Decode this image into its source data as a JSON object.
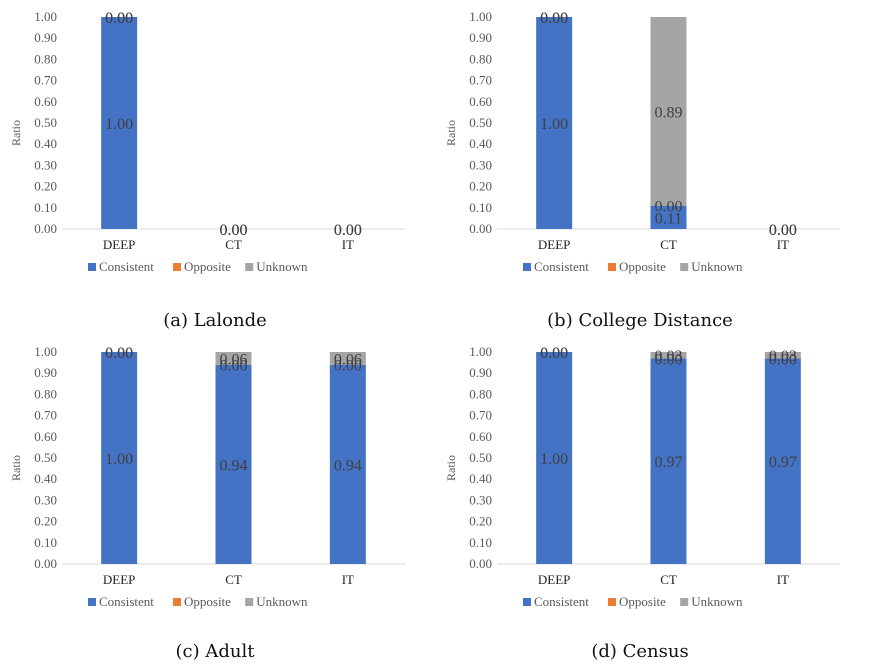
{
  "legend": [
    {
      "name": "Consistent",
      "color": "#4472C4"
    },
    {
      "name": "Opposite",
      "color": "#ED7D31"
    },
    {
      "name": "Unknown",
      "color": "#A5A5A5"
    }
  ],
  "chart_data": [
    {
      "type": "bar",
      "stacked": true,
      "caption": "(a) Lalonde",
      "ylabel": "Ratio",
      "ylim": [
        0,
        1
      ],
      "yticks": [
        "0.00",
        "0.10",
        "0.20",
        "0.30",
        "0.40",
        "0.50",
        "0.60",
        "0.70",
        "0.80",
        "0.90",
        "1.00"
      ],
      "categories": [
        "DEEP",
        "CT",
        "IT"
      ],
      "series": [
        {
          "name": "Consistent",
          "values": [
            1.0,
            0.0,
            0.0
          ],
          "labels": [
            "1.00",
            "0.00",
            "0.00"
          ]
        },
        {
          "name": "Opposite",
          "values": [
            0.0,
            0.0,
            0.0
          ],
          "labels": [
            "0.00",
            "0.00",
            "0.00"
          ]
        },
        {
          "name": "Unknown",
          "values": [
            0.0,
            0.0,
            0.0
          ],
          "labels": [
            "0.00",
            "",
            ""
          ]
        }
      ]
    },
    {
      "type": "bar",
      "stacked": true,
      "caption": "(b) College Distance",
      "ylabel": "Ratio",
      "ylim": [
        0,
        1
      ],
      "yticks": [
        "0.00",
        "0.10",
        "0.20",
        "0.30",
        "0.40",
        "0.50",
        "0.60",
        "0.70",
        "0.80",
        "0.90",
        "1.00"
      ],
      "categories": [
        "DEEP",
        "CT",
        "IT"
      ],
      "series": [
        {
          "name": "Consistent",
          "values": [
            1.0,
            0.11,
            0.0
          ],
          "labels": [
            "1.00",
            "0.11",
            "0.00"
          ]
        },
        {
          "name": "Opposite",
          "values": [
            0.0,
            0.0,
            0.0
          ],
          "labels": [
            "0.00",
            "0.00",
            "0.00"
          ]
        },
        {
          "name": "Unknown",
          "values": [
            0.0,
            0.89,
            0.0
          ],
          "labels": [
            "0.00",
            "0.89",
            ""
          ]
        }
      ]
    },
    {
      "type": "bar",
      "stacked": true,
      "caption": "(c) Adult",
      "ylabel": "Ratio",
      "ylim": [
        0,
        1
      ],
      "yticks": [
        "0.00",
        "0.10",
        "0.20",
        "0.30",
        "0.40",
        "0.50",
        "0.60",
        "0.70",
        "0.80",
        "0.90",
        "1.00"
      ],
      "categories": [
        "DEEP",
        "CT",
        "IT"
      ],
      "series": [
        {
          "name": "Consistent",
          "values": [
            1.0,
            0.94,
            0.94
          ],
          "labels": [
            "1.00",
            "0.94",
            "0.94"
          ]
        },
        {
          "name": "Opposite",
          "values": [
            0.0,
            0.0,
            0.0
          ],
          "labels": [
            "0.00",
            "0.00",
            "0.00"
          ]
        },
        {
          "name": "Unknown",
          "values": [
            0.0,
            0.06,
            0.06
          ],
          "labels": [
            "0.00",
            "0.06",
            "0.06"
          ]
        }
      ]
    },
    {
      "type": "bar",
      "stacked": true,
      "caption": "(d) Census",
      "ylabel": "Ratio",
      "ylim": [
        0,
        1
      ],
      "yticks": [
        "0.00",
        "0.10",
        "0.20",
        "0.30",
        "0.40",
        "0.50",
        "0.60",
        "0.70",
        "0.80",
        "0.90",
        "1.00"
      ],
      "categories": [
        "DEEP",
        "CT",
        "IT"
      ],
      "series": [
        {
          "name": "Consistent",
          "values": [
            1.0,
            0.97,
            0.97
          ],
          "labels": [
            "1.00",
            "0.97",
            "0.97"
          ]
        },
        {
          "name": "Opposite",
          "values": [
            0.0,
            0.0,
            0.0
          ],
          "labels": [
            "0.00",
            "0.00",
            "0.00"
          ]
        },
        {
          "name": "Unknown",
          "values": [
            0.0,
            0.03,
            0.03
          ],
          "labels": [
            "0.00",
            "0.03",
            "0.03"
          ]
        }
      ]
    }
  ]
}
